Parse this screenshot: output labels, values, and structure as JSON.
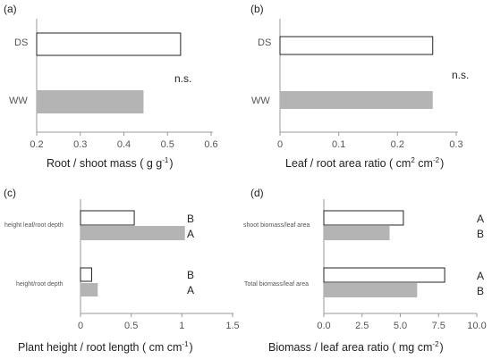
{
  "chart_data": [
    {
      "panel_label": "(a)",
      "type": "bar",
      "orientation": "horizontal",
      "categories": [
        "DS",
        "WW"
      ],
      "values": [
        0.53,
        0.445
      ],
      "xlim": [
        0.2,
        0.6
      ],
      "xticks": [
        "0.2",
        "0.3",
        "0.4",
        "0.5",
        "0.6"
      ],
      "xlabel": "Root / shoot mass ( g g",
      "xlabel_sup": "-1",
      "xlabel_end": ")",
      "annotation": "n.s."
    },
    {
      "panel_label": "(b)",
      "type": "bar",
      "orientation": "horizontal",
      "categories": [
        "DS",
        "WW"
      ],
      "values": [
        0.26,
        0.26
      ],
      "xlim": [
        0,
        0.3
      ],
      "xticks": [
        "0",
        "0.1",
        "0.2",
        "0.3"
      ],
      "xlabel": "Leaf / root area ratio ( cm",
      "xlabel_sup1": "2",
      "xlabel_mid": " cm",
      "xlabel_sup2": "-2",
      "xlabel_end": ")",
      "annotation": "n.s."
    },
    {
      "panel_label": "(c)",
      "type": "bar",
      "orientation": "horizontal",
      "categories": [
        "height leaf/root depth",
        "height/root depth"
      ],
      "series": [
        {
          "values": [
            0.53,
            0.11
          ],
          "letters": [
            "B",
            "B"
          ]
        },
        {
          "values": [
            1.03,
            0.17
          ],
          "letters": [
            "A",
            "A"
          ]
        }
      ],
      "xlim": [
        0,
        1.5
      ],
      "xticks": [
        "0",
        "0.5",
        "1",
        "1.5"
      ],
      "xlabel": "Plant height / root length  ( cm cm",
      "xlabel_sup": "-1",
      "xlabel_end": ")"
    },
    {
      "panel_label": "(d)",
      "type": "bar",
      "orientation": "horizontal",
      "categories": [
        "shoot biomass/leaf area",
        "Total biomass/leaf area"
      ],
      "series": [
        {
          "values": [
            5.2,
            7.9
          ],
          "letters": [
            "A",
            "A"
          ]
        },
        {
          "values": [
            4.3,
            6.1
          ],
          "letters": [
            "B",
            "B"
          ]
        }
      ],
      "xlim": [
        0,
        10
      ],
      "xticks": [
        "0.0",
        "2.5",
        "5.0",
        "7.5",
        "10.0"
      ],
      "xlabel": "Biomass / leaf area ratio ( mg cm",
      "xlabel_sup": "-2",
      "xlabel_end": ")"
    }
  ],
  "colors": {
    "open_bar": "#ffffff",
    "filled_bar": "#b4b4b4",
    "bar_edge": "#222222",
    "axis": "#999999"
  }
}
